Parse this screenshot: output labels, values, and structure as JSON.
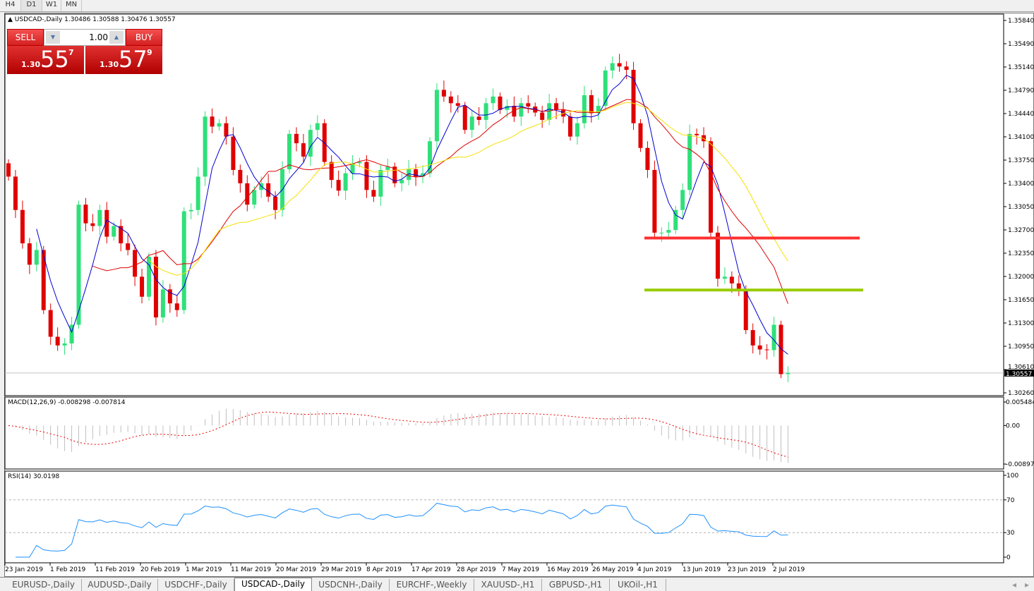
{
  "timeframes": [
    {
      "label": "H4"
    },
    {
      "label": "D1",
      "active": true
    },
    {
      "label": "W1"
    },
    {
      "label": "MN"
    }
  ],
  "chart": {
    "title": "USDCAD-,Daily  1.30486 1.30588 1.30476 1.30557",
    "current_price_label": "1.30557",
    "current_price": 1.30557,
    "price_axis": [
      "1.35840",
      "1.35490",
      "1.35140",
      "1.34790",
      "1.34440",
      "1.34100",
      "1.33750",
      "1.33400",
      "1.33050",
      "1.32700",
      "1.32350",
      "1.32000",
      "1.31650",
      "1.31300",
      "1.30950",
      "1.30610",
      "1.30260"
    ],
    "price_range": [
      1.3026,
      1.3584
    ],
    "date_axis": [
      "23 Jan 2019",
      "1 Feb 2019",
      "11 Feb 2019",
      "20 Feb 2019",
      "1 Mar 2019",
      "11 Mar 2019",
      "20 Mar 2019",
      "29 Mar 2019",
      "8 Apr 2019",
      "17 Apr 2019",
      "28 Apr 2019",
      "7 May 2019",
      "16 May 2019",
      "26 May 2019",
      "4 Jun 2019",
      "13 Jun 2019",
      "23 Jun 2019",
      "2 Jul 2019"
    ],
    "colors": {
      "bull": "#2fe07a",
      "bear": "#e00000",
      "ma_fast": "#0000d0",
      "ma_mid": "#e00000",
      "ma_slow": "#f5e000",
      "hline_red": "#ff3030",
      "hline_green": "#99cc00"
    },
    "horizontal_lines": [
      {
        "price": 1.3258,
        "color": "red"
      },
      {
        "price": 1.318,
        "color": "green"
      }
    ],
    "closes": [
      1.335,
      1.33,
      1.325,
      1.3218,
      1.324,
      1.315,
      1.311,
      1.3097,
      1.31,
      1.3128,
      1.3308,
      1.328,
      1.3276,
      1.33,
      1.326,
      1.3276,
      1.325,
      1.324,
      1.32,
      1.317,
      1.323,
      1.3139,
      1.3181,
      1.316,
      1.315,
      1.3298,
      1.33,
      1.335,
      1.344,
      1.3425,
      1.343,
      1.341,
      1.336,
      1.334,
      1.3308,
      1.333,
      1.334,
      1.332,
      1.33,
      1.3361,
      1.3414,
      1.34,
      1.338,
      1.342,
      1.343,
      1.3372,
      1.3345,
      1.3329,
      1.3355,
      1.337,
      1.3372,
      1.333,
      1.332,
      1.336,
      1.3365,
      1.334,
      1.3345,
      1.3361,
      1.335,
      1.3355,
      1.3403,
      1.348,
      1.347,
      1.346,
      1.3456,
      1.342,
      1.344,
      1.3435,
      1.346,
      1.347,
      1.345,
      1.3456,
      1.344,
      1.346,
      1.3455,
      1.3446,
      1.3435,
      1.346,
      1.345,
      1.344,
      1.341,
      1.343,
      1.3472,
      1.3445,
      1.3456,
      1.3509,
      1.352,
      1.3515,
      1.351,
      1.343,
      1.3393,
      1.336,
      1.3266,
      1.3266,
      1.327,
      1.33,
      1.333,
      1.3414,
      1.3412,
      1.3403,
      1.3266,
      1.3197,
      1.32,
      1.319,
      1.3181,
      1.312,
      1.3097,
      1.3091,
      1.309,
      1.3128,
      1.3054,
      1.30557
    ]
  },
  "trade_panel": {
    "sell_label": "SELL",
    "buy_label": "BUY",
    "lot": "1.00",
    "sell_small": "1.30",
    "sell_big": "55",
    "sell_pip": "7",
    "buy_small": "1.30",
    "buy_big": "57",
    "buy_pip": "9"
  },
  "macd": {
    "label": "MACD(12,26,9) -0.008298 -0.007814",
    "axis": [
      "0.005484",
      "0.00",
      "-0.008973"
    ],
    "range": [
      -0.008973,
      0.005484
    ]
  },
  "rsi": {
    "label": "RSI(14) 30.0198",
    "axis": [
      "100",
      "70",
      "30",
      "0"
    ]
  },
  "tabs": [
    {
      "label": "EURUSD-,Daily"
    },
    {
      "label": "AUDUSD-,Daily"
    },
    {
      "label": "USDCHF-,Daily"
    },
    {
      "label": "USDCAD-,Daily",
      "active": true
    },
    {
      "label": "USDCNH-,Daily"
    },
    {
      "label": "EURCHF-,Weekly"
    },
    {
      "label": "XAUUSD-,H1"
    },
    {
      "label": "GBPUSD-,H1"
    },
    {
      "label": "UKOil-,H1"
    }
  ]
}
